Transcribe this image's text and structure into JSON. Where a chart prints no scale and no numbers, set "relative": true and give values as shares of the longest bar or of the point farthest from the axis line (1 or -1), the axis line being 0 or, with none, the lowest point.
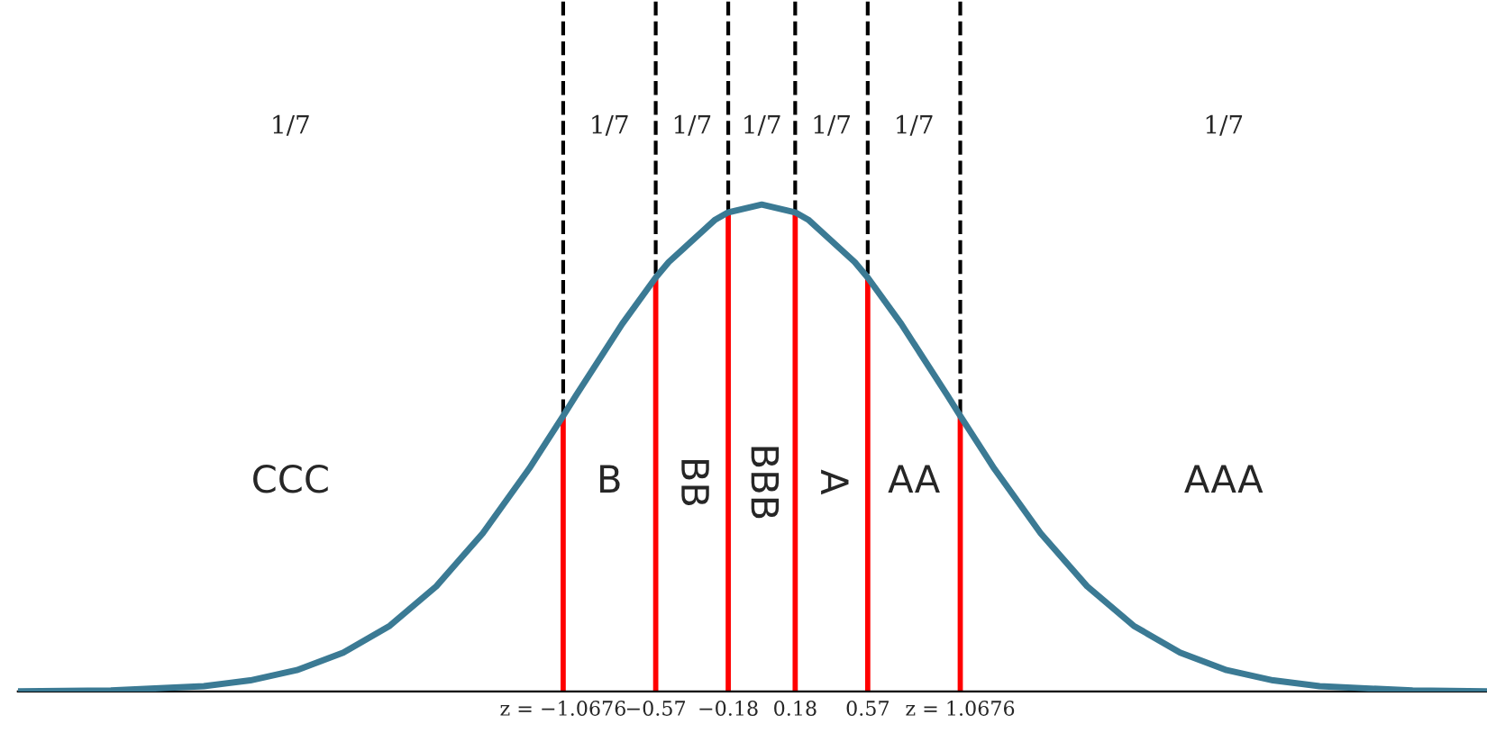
{
  "chart_data": {
    "type": "line",
    "relative": true,
    "x": [
      -4,
      -3.5,
      -3,
      -2.75,
      -2.5,
      -2.25,
      -2,
      -1.75,
      -1.5,
      -1.25,
      -1.0676,
      -1,
      -0.75,
      -0.57,
      -0.5,
      -0.25,
      -0.18,
      0,
      0.18,
      0.25,
      0.5,
      0.57,
      0.75,
      1,
      1.0676,
      1.25,
      1.5,
      1.75,
      2,
      2.25,
      2.5,
      2.75,
      3,
      3.5,
      3.9
    ],
    "series": [
      {
        "color": "#3b7a94",
        "values": [
          0.0003,
          0.0022,
          0.011,
          0.023,
          0.044,
          0.08,
          0.135,
          0.216,
          0.325,
          0.458,
          0.566,
          0.607,
          0.755,
          0.85,
          0.882,
          0.969,
          0.984,
          1,
          0.984,
          0.969,
          0.882,
          0.85,
          0.755,
          0.607,
          0.566,
          0.458,
          0.325,
          0.216,
          0.135,
          0.08,
          0.044,
          0.023,
          0.011,
          0.0022,
          0.0005
        ]
      },
      {
        "type": "bar",
        "color": "#ff0000",
        "x": [
          -1.0676,
          -0.57,
          -0.18,
          0.18,
          0.57,
          1.0676
        ],
        "values": [
          0.566,
          0.85,
          0.984,
          0.984,
          0.85,
          0.566
        ]
      }
    ],
    "xlim": [
      -4,
      3.9
    ],
    "xticks": [
      {
        "value": -1.0676,
        "label": "z = −1.0676"
      },
      {
        "value": -0.57,
        "label": "−0.57"
      },
      {
        "value": -0.18,
        "label": "−0.18"
      },
      {
        "value": 0.18,
        "label": "0.18"
      },
      {
        "value": 0.57,
        "label": "0.57"
      },
      {
        "value": 1.0676,
        "label": "z = 1.0676"
      }
    ],
    "tick_labels": "x",
    "ref_lines": [
      {
        "axis": "x",
        "value": -1.0676,
        "color": "#000000",
        "line_style": "dashed"
      },
      {
        "axis": "x",
        "value": -0.57,
        "color": "#000000",
        "line_style": "dashed"
      },
      {
        "axis": "x",
        "value": -0.18,
        "color": "#000000",
        "line_style": "dashed"
      },
      {
        "axis": "x",
        "value": 0.18,
        "color": "#000000",
        "line_style": "dashed"
      },
      {
        "axis": "x",
        "value": 0.57,
        "color": "#000000",
        "line_style": "dashed"
      },
      {
        "axis": "x",
        "value": 1.0676,
        "color": "#000000",
        "line_style": "dashed"
      }
    ],
    "annotations": [
      "CCC",
      "B",
      "BB",
      "BBB",
      "A",
      "AA",
      "AAA",
      "1/7",
      "1/7",
      "1/7",
      "1/7",
      "1/7",
      "1/7",
      "1/7"
    ],
    "legend": false
  }
}
